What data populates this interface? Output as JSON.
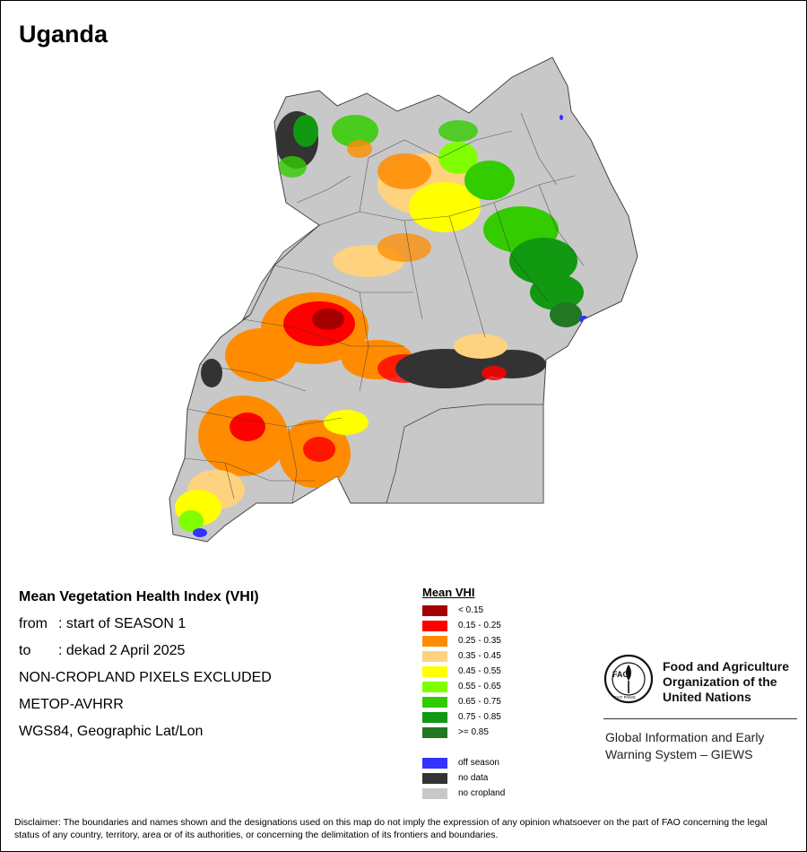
{
  "map_title": "Uganda",
  "info": {
    "heading": "Mean Vegetation Health Index (VHI)",
    "from_label": "from",
    "from_value": ": start of SEASON 1",
    "to_label": "to",
    "to_value": ": dekad 2 April 2025",
    "note_pixels": "NON-CROPLAND PIXELS EXCLUDED",
    "sensor": "METOP-AVHRR",
    "projection": "WGS84, Geographic Lat/Lon"
  },
  "legend": {
    "title": "Mean VHI",
    "classes": [
      {
        "label": "< 0.15",
        "color": "#a50000"
      },
      {
        "label": "0.15 - 0.25",
        "color": "#ff0000"
      },
      {
        "label": "0.25 - 0.35",
        "color": "#ff8c00"
      },
      {
        "label": "0.35 - 0.45",
        "color": "#ffd27f"
      },
      {
        "label": "0.45 - 0.55",
        "color": "#ffff00"
      },
      {
        "label": "0.55 - 0.65",
        "color": "#7fff00"
      },
      {
        "label": "0.65 - 0.75",
        "color": "#33cc00"
      },
      {
        "label": "0.75 - 0.85",
        "color": "#119911"
      },
      {
        "label": ">= 0.85",
        "color": "#227722"
      }
    ],
    "other": [
      {
        "label": "off season",
        "color": "#3333ff"
      },
      {
        "label": "no data",
        "color": "#333333"
      },
      {
        "label": "no cropland",
        "color": "#c8c8c8"
      }
    ]
  },
  "fao": {
    "name_line1": "Food and Agriculture",
    "name_line2": "Organization of the",
    "name_line3": "United Nations",
    "logo_text": "FAO",
    "logo_motto": "FIAT PANIS",
    "giews_line1": "Global Information and Early",
    "giews_line2": "Warning System – GIEWS"
  },
  "disclaimer": "Disclaimer: The boundaries and names shown and the designations used on this map do not imply the expression of any opinion whatsoever on the part of FAO concerning the legal status of any country, territory, area or of its authorities, or concerning the delimitation of its frontiers and boundaries."
}
